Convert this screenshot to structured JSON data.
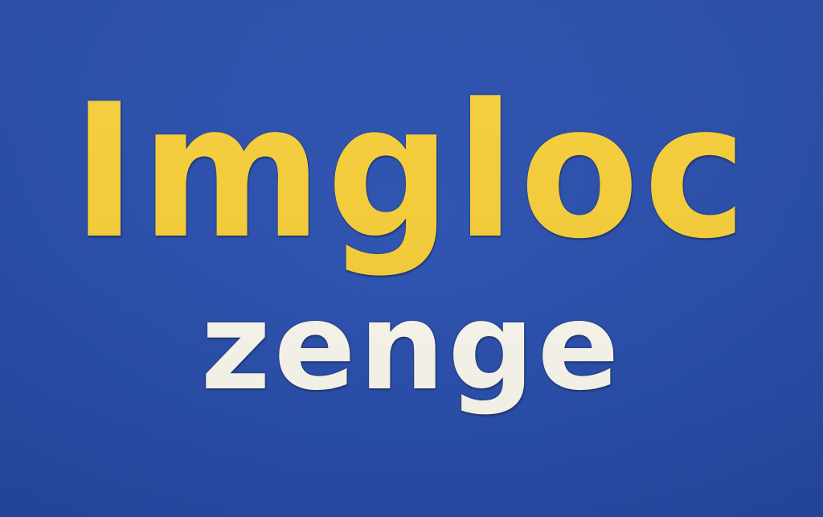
{
  "logo": {
    "line1": "Imgloc",
    "line2": "zenge"
  },
  "colors": {
    "background": "#2a4fac",
    "line1": "#f7cf3a",
    "line2": "#fbf8ee",
    "outline": "#1c2f5e"
  }
}
